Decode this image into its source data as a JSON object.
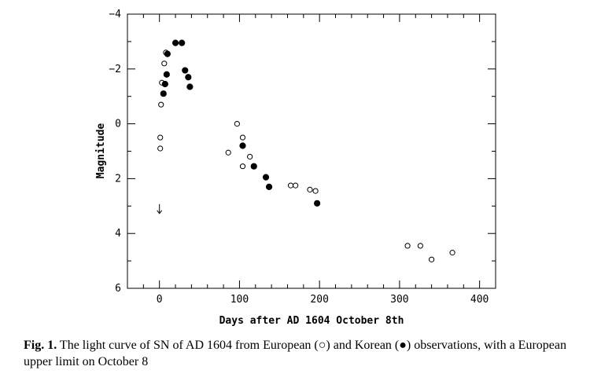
{
  "chart_data": {
    "type": "scatter",
    "xlabel": "Days after AD 1604 October 8th",
    "ylabel": "Magnitude",
    "xlim": [
      -40,
      420
    ],
    "ylim": [
      -4,
      6
    ],
    "y_inverted": true,
    "xticks": [
      0,
      100,
      200,
      300,
      400
    ],
    "yticks": [
      -4,
      -2,
      0,
      2,
      4,
      6
    ],
    "xtick_labels": [
      "0",
      "100",
      "200",
      "300",
      "400"
    ],
    "ytick_labels": [
      "−4",
      "−2",
      "0",
      "2",
      "4",
      "6"
    ],
    "series": [
      {
        "marker": "open-circle",
        "points": [
          {
            "x": 1,
            "y": 0.9
          },
          {
            "x": 1,
            "y": 0.5
          },
          {
            "x": 2,
            "y": -0.7
          },
          {
            "x": 3,
            "y": -1.5
          },
          {
            "x": 6,
            "y": -2.2
          },
          {
            "x": 8,
            "y": -2.6
          },
          {
            "x": 86,
            "y": 1.05
          },
          {
            "x": 97,
            "y": 0.0
          },
          {
            "x": 104,
            "y": 0.5
          },
          {
            "x": 104,
            "y": 1.55
          },
          {
            "x": 113,
            "y": 1.2
          },
          {
            "x": 164,
            "y": 2.25
          },
          {
            "x": 170,
            "y": 2.25
          },
          {
            "x": 188,
            "y": 2.4
          },
          {
            "x": 195,
            "y": 2.45
          },
          {
            "x": 310,
            "y": 4.45
          },
          {
            "x": 326,
            "y": 4.45
          },
          {
            "x": 340,
            "y": 4.95
          },
          {
            "x": 366,
            "y": 4.7
          }
        ]
      },
      {
        "marker": "filled-circle",
        "points": [
          {
            "x": 5,
            "y": -1.1
          },
          {
            "x": 7,
            "y": -1.45
          },
          {
            "x": 9,
            "y": -1.8
          },
          {
            "x": 10,
            "y": -2.55
          },
          {
            "x": 20,
            "y": -2.95
          },
          {
            "x": 28,
            "y": -2.95
          },
          {
            "x": 32,
            "y": -1.95
          },
          {
            "x": 36,
            "y": -1.7
          },
          {
            "x": 38,
            "y": -1.35
          },
          {
            "x": 104,
            "y": 0.8
          },
          {
            "x": 118,
            "y": 1.55
          },
          {
            "x": 133,
            "y": 1.95
          },
          {
            "x": 137,
            "y": 2.3
          },
          {
            "x": 197,
            "y": 2.9
          }
        ]
      }
    ],
    "upper_limits": [
      {
        "x": 0,
        "y": 3.1
      }
    ]
  },
  "caption": {
    "label": "Fig. 1.",
    "text": " The light curve of SN of AD 1604 from European (○) and Korean (●) observations, with a European upper limit on October 8"
  }
}
